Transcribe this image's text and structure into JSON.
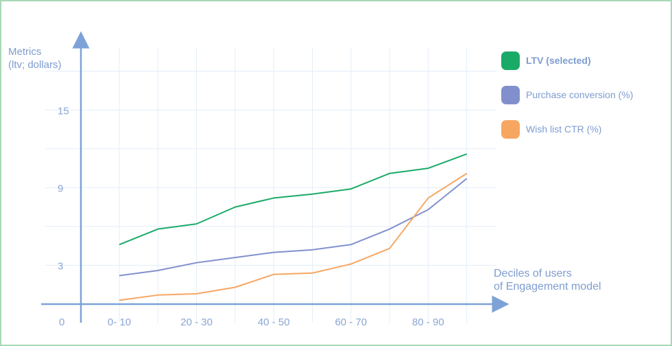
{
  "chart_data": {
    "type": "line",
    "ylabel_lines": [
      "Metrics",
      "(ltv; dollars)"
    ],
    "xlabel_lines": [
      "Deciles of users",
      "of Engagement model"
    ],
    "y_ticks": [
      0,
      3,
      9,
      15
    ],
    "ylim": [
      0,
      21
    ],
    "grid": true,
    "legend_position": "right",
    "x_tick_labels": [
      "0- 10",
      "20 - 30",
      "40 - 50",
      "60 - 70",
      "80 - 90"
    ],
    "x": [
      0,
      1,
      2,
      3,
      4,
      5,
      6,
      7,
      8,
      9
    ],
    "series": [
      {
        "name": "LTV (selected)",
        "color": "#1aaa68",
        "selected": true,
        "values": [
          4.6,
          5.8,
          6.2,
          7.5,
          8.2,
          8.5,
          8.9,
          10.1,
          10.5,
          11.6
        ]
      },
      {
        "name": "Purchase conversion (%)",
        "color": "#8190cd",
        "selected": false,
        "values": [
          2.2,
          2.6,
          3.2,
          3.6,
          4.0,
          4.2,
          4.6,
          5.8,
          7.3,
          9.7
        ]
      },
      {
        "name": "Wish list CTR (%)",
        "color": "#f7a661",
        "selected": false,
        "values": [
          0.3,
          0.7,
          0.8,
          1.3,
          2.3,
          2.4,
          3.1,
          4.3,
          8.2,
          10.1
        ]
      }
    ]
  }
}
